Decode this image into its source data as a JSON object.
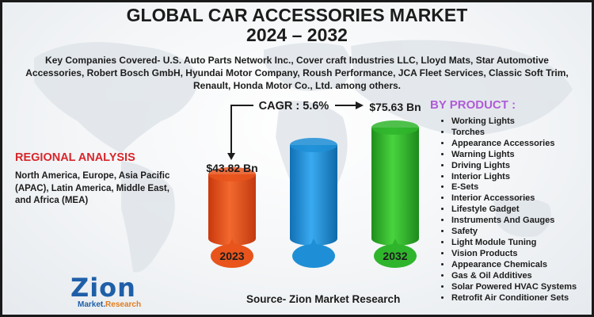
{
  "header": {
    "title_line1": "GLOBAL CAR ACCESSORIES MARKET",
    "title_line2": "2024 – 2032"
  },
  "companies_text": "Key Companies Covered- U.S. Auto Parts Network Inc., Cover craft Industries LLC, Lloyd Mats, Star Automotive Accessories, Robert Bosch GmbH, Hyundai Motor Company, Roush Performance, JCA Fleet Services, Classic Soft Trim, Renault, Honda Motor Co., Ltd. among others.",
  "regional": {
    "title": "REGIONAL ANALYSIS",
    "text": "North America, Europe, Asia Pacific (APAC), Latin America, Middle East, and Africa (MEA)"
  },
  "by_product": {
    "title": "BY PRODUCT :",
    "items": [
      "Working Lights",
      "Torches",
      "Appearance Accessories",
      "Warning Lights",
      "Driving Lights",
      "Interior Lights",
      "E-Sets",
      "Interior Accessories",
      "Lifestyle Gadget",
      "Instruments And Gauges",
      "Safety",
      "Light Module Tuning",
      "Vision Products",
      "Appearance Chemicals",
      "Gas & Oil Additives",
      "Solar Powered HVAC Systems",
      "Retrofit Air Conditioner Sets"
    ]
  },
  "source": "Source- Zion Market Research",
  "logo": {
    "brand": "Zion",
    "sub_a": "Market",
    "sub_b": "Research"
  },
  "chart_data": {
    "type": "bar",
    "categories": [
      "2023",
      "",
      "2032"
    ],
    "values": [
      43.82,
      null,
      75.63
    ],
    "value_labels": [
      "$43.82 Bn",
      "",
      "$75.63 Bn"
    ],
    "cagr_label": "CAGR : 5.6%",
    "colors": [
      "#e8541c",
      "#1e8fd6",
      "#2fb52c"
    ]
  },
  "colors": {
    "accent_red": "#d7262b",
    "accent_purple": "#b05bd8",
    "brand_blue": "#1f5fa8"
  }
}
